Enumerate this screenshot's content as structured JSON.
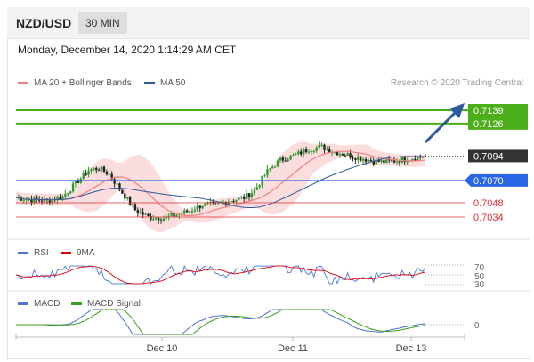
{
  "header": {
    "symbol": "NZD/USD",
    "timeframe": "30 MIN"
  },
  "timestamp": "Monday, December 14, 2020 1:14:29 AM CET",
  "credit": "Research © 2020 Trading Central",
  "chart_data": [
    {
      "type": "candlestick",
      "legend": [
        {
          "label": "MA 20 + Bollinger Bands",
          "color": "#f08080"
        },
        {
          "label": "MA 50",
          "color": "#2c5a9a"
        }
      ],
      "ylim": [
        0.702,
        0.716
      ],
      "levels": [
        {
          "value": 0.7139,
          "label": "0.7139",
          "style": "resistance",
          "color": "#4caf1a"
        },
        {
          "value": 0.7126,
          "label": "0.7126",
          "style": "resistance",
          "color": "#4caf1a"
        },
        {
          "value": 0.7094,
          "label": "0.7094",
          "style": "current",
          "color": "#333333"
        },
        {
          "value": 0.707,
          "label": "0.7070",
          "style": "pivot",
          "color": "#2866e6"
        },
        {
          "value": 0.7048,
          "label": "0.7048",
          "style": "support",
          "color": "#e0303a"
        },
        {
          "value": 0.7034,
          "label": "0.7034",
          "style": "support",
          "color": "#e0303a"
        }
      ],
      "x_ticks": [
        "Dec 10",
        "Dec 11",
        "Dec 13"
      ],
      "close_path": [
        [
          0,
          0.7053
        ],
        [
          6,
          0.7051
        ],
        [
          12,
          0.705
        ],
        [
          18,
          0.7054
        ],
        [
          23,
          0.7067
        ],
        [
          28,
          0.708
        ],
        [
          32,
          0.7082
        ],
        [
          36,
          0.7076
        ],
        [
          41,
          0.7058
        ],
        [
          46,
          0.7041
        ],
        [
          51,
          0.7034
        ],
        [
          57,
          0.7033
        ],
        [
          62,
          0.7036
        ],
        [
          67,
          0.704
        ],
        [
          72,
          0.7046
        ],
        [
          77,
          0.7046
        ],
        [
          82,
          0.705
        ],
        [
          88,
          0.7053
        ],
        [
          92,
          0.706
        ],
        [
          97,
          0.7079
        ],
        [
          102,
          0.709
        ],
        [
          108,
          0.7095
        ],
        [
          113,
          0.7101
        ],
        [
          118,
          0.7103
        ],
        [
          123,
          0.7098
        ],
        [
          128,
          0.7095
        ],
        [
          133,
          0.7092
        ],
        [
          138,
          0.7089
        ],
        [
          143,
          0.7088
        ],
        [
          148,
          0.709
        ],
        [
          153,
          0.7092
        ],
        [
          158,
          0.7094
        ]
      ]
    },
    {
      "type": "line",
      "legend": [
        {
          "label": "RSI",
          "color": "#4a74d6"
        },
        {
          "label": "9MA",
          "color": "#e0000a"
        }
      ],
      "ylim": [
        30,
        70
      ],
      "y_ticks": [
        "70",
        "50",
        "30"
      ]
    },
    {
      "type": "line",
      "legend": [
        {
          "label": "MACD",
          "color": "#4a74d6"
        },
        {
          "label": "MACD Signal",
          "color": "#3aa01a"
        }
      ],
      "y_ticks": [
        "0"
      ]
    }
  ]
}
